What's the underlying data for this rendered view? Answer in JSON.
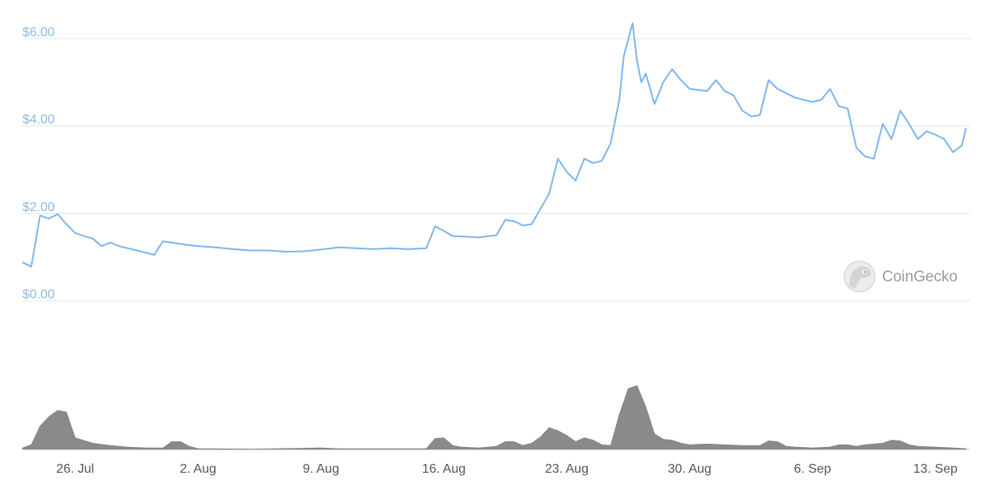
{
  "watermark": {
    "text": "CoinGecko",
    "icon": "gecko-logo-icon"
  },
  "colors": {
    "price_line": "#7cb5ec",
    "volume": "#8a8a8a",
    "grid": "#e6e6e6",
    "y_label": "#8fb8dc",
    "x_label": "#555555"
  },
  "chart_data": {
    "type": "line",
    "title": "",
    "xlabel": "",
    "ylabel": "",
    "grid": true,
    "legend": "none",
    "ylim": [
      0,
      6
    ],
    "y_ticks": [
      0,
      2,
      4,
      6
    ],
    "y_tick_labels": [
      "$0.00",
      "$2.00",
      "$4.00",
      "$6.00"
    ],
    "x_range": [
      "2021-07-23",
      "2021-09-14"
    ],
    "x_ticks": [
      {
        "date": "2021-07-26",
        "label": "26. Jul"
      },
      {
        "date": "2021-08-02",
        "label": "2. Aug"
      },
      {
        "date": "2021-08-09",
        "label": "9. Aug"
      },
      {
        "date": "2021-08-16",
        "label": "16. Aug"
      },
      {
        "date": "2021-08-23",
        "label": "23. Aug"
      },
      {
        "date": "2021-08-30",
        "label": "30. Aug"
      },
      {
        "date": "2021-09-06",
        "label": "6. Sep"
      },
      {
        "date": "2021-09-13",
        "label": "13. Sep"
      }
    ],
    "series": [
      {
        "kind": "price",
        "points": [
          [
            "2021-07-23",
            0.88
          ],
          [
            "2021-07-23T12",
            0.78
          ],
          [
            "2021-07-24",
            1.95
          ],
          [
            "2021-07-24T12",
            1.88
          ],
          [
            "2021-07-25",
            1.98
          ],
          [
            "2021-07-25T12",
            1.75
          ],
          [
            "2021-07-26",
            1.55
          ],
          [
            "2021-07-26T12",
            1.48
          ],
          [
            "2021-07-27",
            1.42
          ],
          [
            "2021-07-27T12",
            1.25
          ],
          [
            "2021-07-28",
            1.33
          ],
          [
            "2021-07-28T12",
            1.25
          ],
          [
            "2021-07-29",
            1.2
          ],
          [
            "2021-07-29T12",
            1.15
          ],
          [
            "2021-07-30",
            1.1
          ],
          [
            "2021-07-30T12",
            1.05
          ],
          [
            "2021-07-31",
            1.36
          ],
          [
            "2021-07-31T12",
            1.33
          ],
          [
            "2021-08-01",
            1.3
          ],
          [
            "2021-08-01T12",
            1.27
          ],
          [
            "2021-08-02",
            1.25
          ],
          [
            "2021-08-03",
            1.22
          ],
          [
            "2021-08-04",
            1.18
          ],
          [
            "2021-08-05",
            1.15
          ],
          [
            "2021-08-06",
            1.15
          ],
          [
            "2021-08-07",
            1.12
          ],
          [
            "2021-08-08",
            1.13
          ],
          [
            "2021-08-09",
            1.17
          ],
          [
            "2021-08-10",
            1.22
          ],
          [
            "2021-08-11",
            1.2
          ],
          [
            "2021-08-12",
            1.18
          ],
          [
            "2021-08-13",
            1.2
          ],
          [
            "2021-08-14",
            1.18
          ],
          [
            "2021-08-15",
            1.2
          ],
          [
            "2021-08-15T12",
            1.7
          ],
          [
            "2021-08-16",
            1.6
          ],
          [
            "2021-08-16T12",
            1.48
          ],
          [
            "2021-08-17",
            1.47
          ],
          [
            "2021-08-18",
            1.45
          ],
          [
            "2021-08-19",
            1.5
          ],
          [
            "2021-08-19T12",
            1.85
          ],
          [
            "2021-08-20",
            1.82
          ],
          [
            "2021-08-20T12",
            1.72
          ],
          [
            "2021-08-21",
            1.75
          ],
          [
            "2021-08-21T12",
            2.1
          ],
          [
            "2021-08-22",
            2.45
          ],
          [
            "2021-08-22T12",
            3.25
          ],
          [
            "2021-08-23",
            2.95
          ],
          [
            "2021-08-23T12",
            2.75
          ],
          [
            "2021-08-24",
            3.25
          ],
          [
            "2021-08-24T12",
            3.15
          ],
          [
            "2021-08-25",
            3.2
          ],
          [
            "2021-08-25T12",
            3.6
          ],
          [
            "2021-08-26",
            4.6
          ],
          [
            "2021-08-26T06",
            5.6
          ],
          [
            "2021-08-26T18",
            6.35
          ],
          [
            "2021-08-27",
            5.5
          ],
          [
            "2021-08-27T06",
            5.0
          ],
          [
            "2021-08-27T12",
            5.2
          ],
          [
            "2021-08-28",
            4.5
          ],
          [
            "2021-08-28T12",
            5.0
          ],
          [
            "2021-08-29",
            5.3
          ],
          [
            "2021-08-29T12",
            5.05
          ],
          [
            "2021-08-30",
            4.85
          ],
          [
            "2021-08-31",
            4.8
          ],
          [
            "2021-08-31T12",
            5.05
          ],
          [
            "2021-09-01",
            4.8
          ],
          [
            "2021-09-01T12",
            4.7
          ],
          [
            "2021-09-02",
            4.35
          ],
          [
            "2021-09-02T12",
            4.22
          ],
          [
            "2021-09-03",
            4.25
          ],
          [
            "2021-09-03T12",
            5.05
          ],
          [
            "2021-09-04",
            4.85
          ],
          [
            "2021-09-04T12",
            4.75
          ],
          [
            "2021-09-05",
            4.65
          ],
          [
            "2021-09-05T12",
            4.6
          ],
          [
            "2021-09-06",
            4.55
          ],
          [
            "2021-09-06T12",
            4.6
          ],
          [
            "2021-09-07",
            4.85
          ],
          [
            "2021-09-07T12",
            4.45
          ],
          [
            "2021-09-08",
            4.4
          ],
          [
            "2021-09-08T12",
            3.5
          ],
          [
            "2021-09-09",
            3.3
          ],
          [
            "2021-09-09T12",
            3.25
          ],
          [
            "2021-09-10",
            4.05
          ],
          [
            "2021-09-10T12",
            3.7
          ],
          [
            "2021-09-11",
            4.35
          ],
          [
            "2021-09-11T12",
            4.05
          ],
          [
            "2021-09-12",
            3.7
          ],
          [
            "2021-09-12T12",
            3.88
          ],
          [
            "2021-09-13",
            3.8
          ],
          [
            "2021-09-13T12",
            3.7
          ],
          [
            "2021-09-14",
            3.4
          ],
          [
            "2021-09-14T12",
            3.55
          ],
          [
            "2021-09-14T18",
            3.95
          ]
        ]
      },
      {
        "kind": "volume",
        "points": [
          [
            "2021-07-23",
            0.02
          ],
          [
            "2021-07-23T12",
            0.06
          ],
          [
            "2021-07-24",
            0.3
          ],
          [
            "2021-07-24T12",
            0.42
          ],
          [
            "2021-07-25",
            0.5
          ],
          [
            "2021-07-25T12",
            0.48
          ],
          [
            "2021-07-26",
            0.15
          ],
          [
            "2021-07-27",
            0.08
          ],
          [
            "2021-07-28",
            0.05
          ],
          [
            "2021-07-29",
            0.03
          ],
          [
            "2021-07-30",
            0.02
          ],
          [
            "2021-07-31",
            0.02
          ],
          [
            "2021-07-31T12",
            0.1
          ],
          [
            "2021-08-01",
            0.1
          ],
          [
            "2021-08-01T12",
            0.04
          ],
          [
            "2021-08-02",
            0.01
          ],
          [
            "2021-08-05",
            0.005
          ],
          [
            "2021-08-09",
            0.02
          ],
          [
            "2021-08-10",
            0.01
          ],
          [
            "2021-08-15",
            0.01
          ],
          [
            "2021-08-15T12",
            0.14
          ],
          [
            "2021-08-16",
            0.15
          ],
          [
            "2021-08-16T12",
            0.05
          ],
          [
            "2021-08-17",
            0.03
          ],
          [
            "2021-08-18",
            0.02
          ],
          [
            "2021-08-19",
            0.04
          ],
          [
            "2021-08-19T12",
            0.1
          ],
          [
            "2021-08-20",
            0.1
          ],
          [
            "2021-08-20T12",
            0.05
          ],
          [
            "2021-08-21",
            0.08
          ],
          [
            "2021-08-21T12",
            0.16
          ],
          [
            "2021-08-22",
            0.28
          ],
          [
            "2021-08-22T12",
            0.24
          ],
          [
            "2021-08-23",
            0.18
          ],
          [
            "2021-08-23T12",
            0.1
          ],
          [
            "2021-08-24",
            0.15
          ],
          [
            "2021-08-24T12",
            0.12
          ],
          [
            "2021-08-25",
            0.06
          ],
          [
            "2021-08-25T12",
            0.05
          ],
          [
            "2021-08-26",
            0.45
          ],
          [
            "2021-08-26T12",
            0.78
          ],
          [
            "2021-08-27",
            0.82
          ],
          [
            "2021-08-27T12",
            0.55
          ],
          [
            "2021-08-28",
            0.2
          ],
          [
            "2021-08-28T12",
            0.13
          ],
          [
            "2021-08-29",
            0.12
          ],
          [
            "2021-08-29T12",
            0.08
          ],
          [
            "2021-08-30",
            0.06
          ],
          [
            "2021-08-31",
            0.07
          ],
          [
            "2021-09-01",
            0.06
          ],
          [
            "2021-09-02",
            0.05
          ],
          [
            "2021-09-03",
            0.05
          ],
          [
            "2021-09-03T12",
            0.11
          ],
          [
            "2021-09-04",
            0.1
          ],
          [
            "2021-09-04T12",
            0.04
          ],
          [
            "2021-09-05",
            0.03
          ],
          [
            "2021-09-06",
            0.02
          ],
          [
            "2021-09-07",
            0.03
          ],
          [
            "2021-09-07T12",
            0.06
          ],
          [
            "2021-09-08",
            0.06
          ],
          [
            "2021-09-08T12",
            0.04
          ],
          [
            "2021-09-09",
            0.06
          ],
          [
            "2021-09-10",
            0.08
          ],
          [
            "2021-09-10T12",
            0.12
          ],
          [
            "2021-09-11",
            0.11
          ],
          [
            "2021-09-11T12",
            0.06
          ],
          [
            "2021-09-12",
            0.04
          ],
          [
            "2021-09-13",
            0.03
          ],
          [
            "2021-09-14",
            0.02
          ],
          [
            "2021-09-14T18",
            0.01
          ]
        ]
      }
    ]
  }
}
